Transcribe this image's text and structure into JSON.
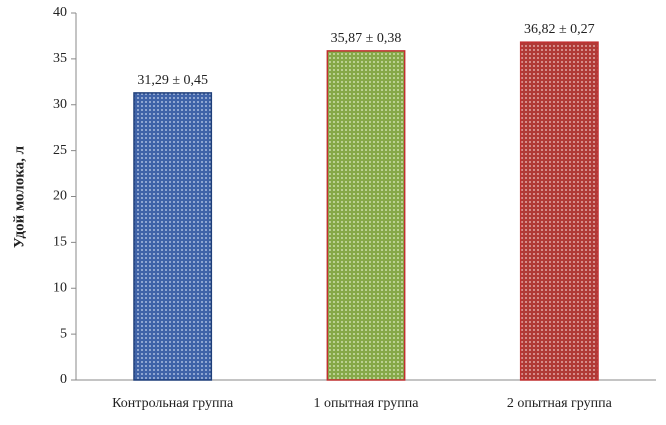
{
  "chart_data": {
    "type": "bar",
    "categories": [
      "Контрольная группа",
      "1 опытная группа",
      "2 опытная группа"
    ],
    "values": [
      31.29,
      35.87,
      36.82
    ],
    "data_labels": [
      "31,29 ± 0,45",
      "35,87  ± 0,38",
      "36,82 ± 0,27"
    ],
    "ylabel": "Удой молока, л",
    "xlabel": "",
    "ylim": [
      0,
      40
    ],
    "yticks": [
      "0",
      "5",
      "10",
      "15",
      "20",
      "25",
      "30",
      "35",
      "40"
    ],
    "grid": false,
    "bar_colors": [
      "#5b7fc0",
      "#9cbc5c",
      "#c0504d"
    ],
    "bar_edge_colors": [
      "#1f3f7a",
      "#c03030",
      "#c03030"
    ]
  }
}
